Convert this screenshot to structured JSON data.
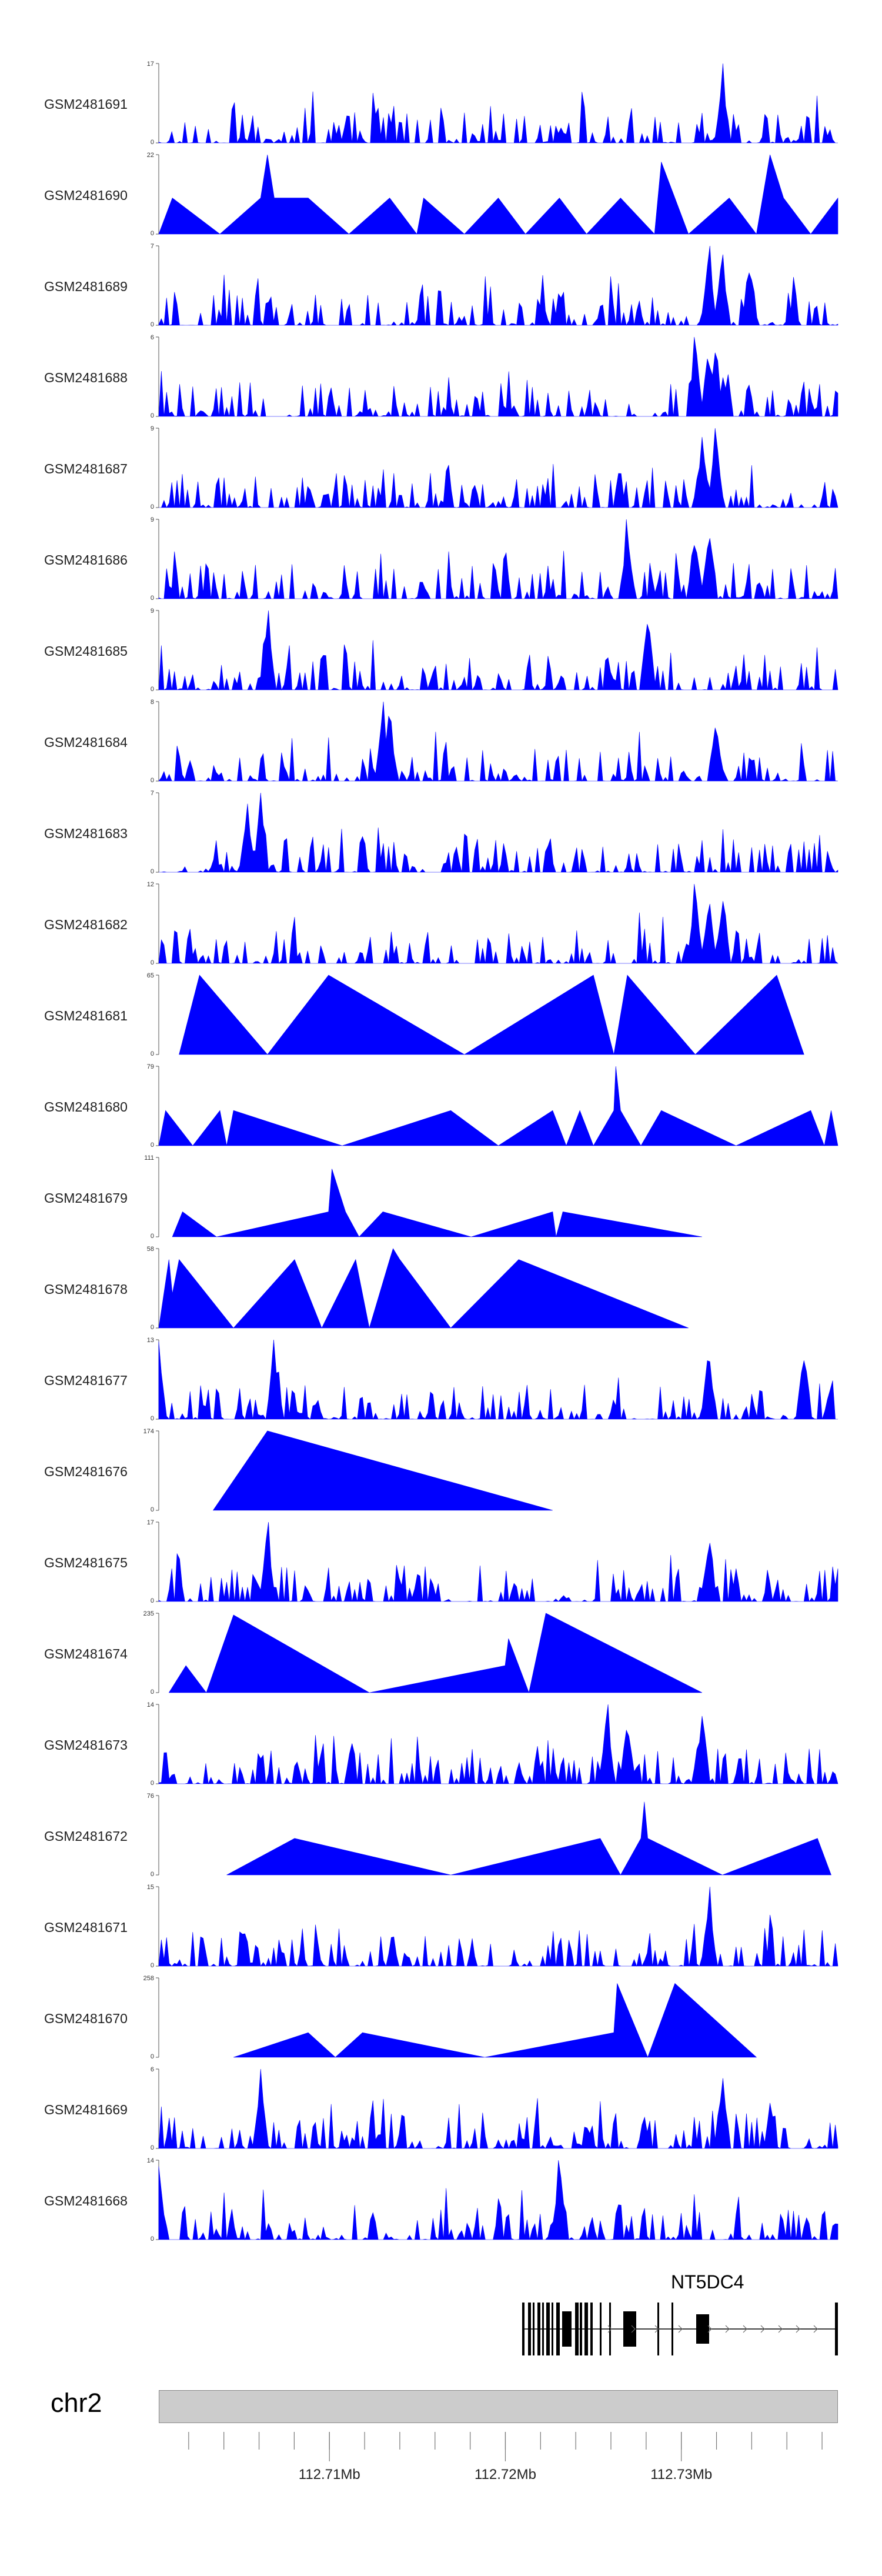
{
  "chart_data": {
    "type": "area",
    "title": "",
    "region": {
      "chromosome": "chr2",
      "start_mb": 112.7003,
      "end_mb": 112.7389
    },
    "tracks": [
      {
        "name": "GSM2481691",
        "ymax": 17,
        "ymin": 0,
        "profile": "dense",
        "seed": 11,
        "hot": [
          0.83
        ]
      },
      {
        "name": "GSM2481690",
        "ymax": 22,
        "ymin": 0,
        "profile": "peaks",
        "peaks": [
          [
            0.0,
            0
          ],
          [
            0.02,
            10
          ],
          [
            0.09,
            0
          ],
          [
            0.15,
            10
          ],
          [
            0.16,
            22
          ],
          [
            0.17,
            10
          ],
          [
            0.22,
            10
          ],
          [
            0.28,
            0
          ],
          [
            0.34,
            10
          ],
          [
            0.38,
            0
          ],
          [
            0.39,
            10
          ],
          [
            0.45,
            0
          ],
          [
            0.5,
            10
          ],
          [
            0.54,
            0
          ],
          [
            0.59,
            10
          ],
          [
            0.63,
            0
          ],
          [
            0.68,
            10
          ],
          [
            0.73,
            0
          ],
          [
            0.74,
            20
          ],
          [
            0.78,
            0
          ],
          [
            0.84,
            10
          ],
          [
            0.88,
            0
          ],
          [
            0.9,
            22
          ],
          [
            0.92,
            10
          ],
          [
            0.96,
            0
          ],
          [
            1.0,
            10
          ]
        ]
      },
      {
        "name": "GSM2481689",
        "ymax": 7,
        "ymin": 0,
        "profile": "dense",
        "seed": 23,
        "hot": [
          0.81,
          0.83,
          0.87
        ]
      },
      {
        "name": "GSM2481688",
        "ymax": 6,
        "ymin": 0,
        "profile": "dense",
        "seed": 31,
        "hot": [
          0.79,
          0.81,
          0.82
        ]
      },
      {
        "name": "GSM2481687",
        "ymax": 9,
        "ymin": 0,
        "profile": "dense",
        "seed": 37,
        "hot": [
          0.82,
          0.8
        ]
      },
      {
        "name": "GSM2481686",
        "ymax": 9,
        "ymin": 0,
        "profile": "dense",
        "seed": 41,
        "hot": [
          0.69,
          0.79,
          0.81
        ]
      },
      {
        "name": "GSM2481685",
        "ymax": 9,
        "ymin": 0,
        "profile": "dense",
        "seed": 43,
        "hot": [
          0.16,
          0.72
        ]
      },
      {
        "name": "GSM2481684",
        "ymax": 8,
        "ymin": 0,
        "profile": "dense",
        "seed": 47,
        "hot": [
          0.33,
          0.34,
          0.82
        ]
      },
      {
        "name": "GSM2481683",
        "ymax": 7,
        "ymin": 0,
        "profile": "dense",
        "seed": 53,
        "hot": [
          0.15,
          0.13
        ]
      },
      {
        "name": "GSM2481682",
        "ymax": 12,
        "ymin": 0,
        "profile": "dense",
        "seed": 59,
        "hot": [
          0.79,
          0.81,
          0.83
        ]
      },
      {
        "name": "GSM2481681",
        "ymax": 65,
        "ymin": 0,
        "profile": "peaks",
        "peaks": [
          [
            0.03,
            0
          ],
          [
            0.06,
            65
          ],
          [
            0.16,
            0
          ],
          [
            0.25,
            65
          ],
          [
            0.45,
            0
          ],
          [
            0.64,
            65
          ],
          [
            0.67,
            0
          ],
          [
            0.69,
            65
          ],
          [
            0.79,
            0
          ],
          [
            0.91,
            65
          ],
          [
            0.95,
            0
          ]
        ]
      },
      {
        "name": "GSM2481680",
        "ymax": 79,
        "ymin": 0,
        "profile": "peaks",
        "peaks": [
          [
            0.0,
            0
          ],
          [
            0.01,
            35
          ],
          [
            0.05,
            0
          ],
          [
            0.09,
            35
          ],
          [
            0.1,
            0
          ],
          [
            0.11,
            35
          ],
          [
            0.27,
            0
          ],
          [
            0.43,
            35
          ],
          [
            0.5,
            0
          ],
          [
            0.58,
            35
          ],
          [
            0.6,
            0
          ],
          [
            0.62,
            35
          ],
          [
            0.64,
            0
          ],
          [
            0.67,
            35
          ],
          [
            0.673,
            79
          ],
          [
            0.68,
            35
          ],
          [
            0.71,
            0
          ],
          [
            0.74,
            35
          ],
          [
            0.85,
            0
          ],
          [
            0.96,
            35
          ],
          [
            0.98,
            0
          ],
          [
            0.99,
            35
          ],
          [
            1.0,
            0
          ]
        ]
      },
      {
        "name": "GSM2481679",
        "ymax": 111,
        "ymin": 0,
        "profile": "peaks",
        "peaks": [
          [
            0.02,
            0
          ],
          [
            0.035,
            35
          ],
          [
            0.085,
            0
          ],
          [
            0.25,
            35
          ],
          [
            0.255,
            95
          ],
          [
            0.275,
            35
          ],
          [
            0.295,
            0
          ],
          [
            0.33,
            35
          ],
          [
            0.46,
            0
          ],
          [
            0.58,
            35
          ],
          [
            0.585,
            0
          ],
          [
            0.595,
            35
          ],
          [
            0.8,
            0
          ]
        ]
      },
      {
        "name": "GSM2481678",
        "ymax": 58,
        "ymin": 0,
        "profile": "peaks",
        "peaks": [
          [
            0.0,
            0
          ],
          [
            0.015,
            50
          ],
          [
            0.02,
            25
          ],
          [
            0.03,
            50
          ],
          [
            0.11,
            0
          ],
          [
            0.2,
            50
          ],
          [
            0.24,
            0
          ],
          [
            0.29,
            50
          ],
          [
            0.31,
            0
          ],
          [
            0.34,
            50
          ],
          [
            0.345,
            58
          ],
          [
            0.355,
            50
          ],
          [
            0.43,
            0
          ],
          [
            0.53,
            50
          ],
          [
            0.78,
            0
          ]
        ]
      },
      {
        "name": "GSM2481677",
        "ymax": 13,
        "ymin": 0,
        "profile": "dense",
        "seed": 61,
        "hot": [
          0.17,
          0.81,
          0.95,
          0.0
        ]
      },
      {
        "name": "GSM2481676",
        "ymax": 174,
        "ymin": 0,
        "profile": "peaks",
        "peaks": [
          [
            0.08,
            0
          ],
          [
            0.16,
            174
          ],
          [
            0.58,
            0
          ]
        ]
      },
      {
        "name": "GSM2481675",
        "ymax": 17,
        "ymin": 0,
        "profile": "dense",
        "seed": 67,
        "hot": [
          0.16,
          0.81
        ]
      },
      {
        "name": "GSM2481674",
        "ymax": 235,
        "ymin": 0,
        "profile": "peaks",
        "peaks": [
          [
            0.015,
            0
          ],
          [
            0.04,
            80
          ],
          [
            0.07,
            0
          ],
          [
            0.11,
            230
          ],
          [
            0.31,
            0
          ],
          [
            0.51,
            80
          ],
          [
            0.515,
            160
          ],
          [
            0.53,
            80
          ],
          [
            0.545,
            0
          ],
          [
            0.57,
            235
          ],
          [
            0.8,
            0
          ]
        ]
      },
      {
        "name": "GSM2481673",
        "ymax": 14,
        "ymin": 0,
        "profile": "dense",
        "seed": 71,
        "hot": [
          0.66,
          0.69,
          0.8
        ]
      },
      {
        "name": "GSM2481672",
        "ymax": 76,
        "ymin": 0,
        "profile": "peaks",
        "peaks": [
          [
            0.1,
            0
          ],
          [
            0.2,
            35
          ],
          [
            0.43,
            0
          ],
          [
            0.65,
            35
          ],
          [
            0.68,
            0
          ],
          [
            0.71,
            35
          ],
          [
            0.715,
            70
          ],
          [
            0.72,
            35
          ],
          [
            0.83,
            0
          ],
          [
            0.97,
            35
          ],
          [
            0.99,
            0
          ]
        ]
      },
      {
        "name": "GSM2481671",
        "ymax": 15,
        "ymin": 0,
        "profile": "dense",
        "seed": 73,
        "hot": [
          0.81
        ]
      },
      {
        "name": "GSM2481670",
        "ymax": 258,
        "ymin": 0,
        "profile": "peaks",
        "peaks": [
          [
            0.11,
            0
          ],
          [
            0.22,
            80
          ],
          [
            0.26,
            0
          ],
          [
            0.3,
            80
          ],
          [
            0.48,
            0
          ],
          [
            0.67,
            80
          ],
          [
            0.675,
            240
          ],
          [
            0.72,
            0
          ],
          [
            0.76,
            240
          ],
          [
            0.88,
            0
          ]
        ]
      },
      {
        "name": "GSM2481669",
        "ymax": 6,
        "ymin": 0,
        "profile": "dense",
        "seed": 79,
        "hot": [
          0.15,
          0.83
        ]
      },
      {
        "name": "GSM2481668",
        "ymax": 14,
        "ymin": 0,
        "profile": "dense",
        "seed": 83,
        "hot": [
          0.59,
          0.0
        ]
      }
    ],
    "gene": {
      "name": "NT5DC4"
    },
    "ideogram_label": "chr2",
    "axis_ticks": [
      {
        "mb": 112.71,
        "label": "112.71Mb"
      },
      {
        "mb": 112.72,
        "label": "112.72Mb"
      },
      {
        "mb": 112.73,
        "label": "112.73Mb"
      }
    ],
    "minor_tick_step_mb": 0.002,
    "fill_color": "#0000ff"
  }
}
